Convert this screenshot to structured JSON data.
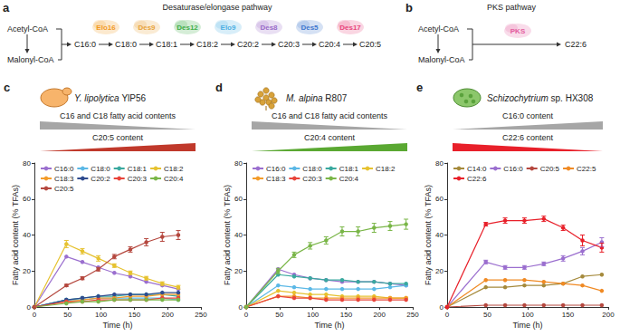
{
  "diagrams": [
    {
      "label": "a",
      "title": "Desaturase/elongase pathway",
      "sources": [
        "Acetyl-CoA",
        "Malonyl-CoA"
      ],
      "chain": [
        "C16:0",
        "C18:0",
        "C18:1",
        "C18:2",
        "C20:2",
        "C20:3",
        "C20:4",
        "C20:5"
      ],
      "enzymes": [
        {
          "name": "Elo16",
          "color": "#f29a1f"
        },
        {
          "name": "Des9",
          "color": "#e8a33a"
        },
        {
          "name": "Des12",
          "color": "#3fae49"
        },
        {
          "name": "Elo9",
          "color": "#4fb0e3"
        },
        {
          "name": "Des8",
          "color": "#9a6cc9"
        },
        {
          "name": "Des5",
          "color": "#3f78cf"
        },
        {
          "name": "Des17",
          "color": "#e8467c"
        }
      ]
    },
    {
      "label": "b",
      "title": "PKS pathway",
      "sources": [
        "Acetyl-CoA",
        "Malonyl-CoA"
      ],
      "enzyme": {
        "name": "PKS",
        "color": "#e45fa0"
      },
      "product": "C22:6"
    }
  ],
  "panels": [
    {
      "label": "c",
      "species": "Y. lipolytica",
      "strain": "YlP56",
      "trends": [
        {
          "text": "C16 and C18 fatty acid contents",
          "color": "#a6a6a6",
          "direction": "decrease"
        },
        {
          "text": "C20:5 content",
          "color": "#c0392b",
          "direction": "increase"
        }
      ]
    },
    {
      "label": "d",
      "species": "M. alpina",
      "strain": "R807",
      "trends": [
        {
          "text": "C16 and C18 fatty acid contents",
          "color": "#a6a6a6",
          "direction": "decrease"
        },
        {
          "text": "C20:4 content",
          "color": "#5aa832",
          "direction": "increase"
        }
      ]
    },
    {
      "label": "e",
      "species": "Schizochytrium",
      "strain": "sp. HX308",
      "trends": [
        {
          "text": "C16:0 content",
          "color": "#a6a6a6",
          "direction": "increase"
        },
        {
          "text": "C22:6 content",
          "color": "#e8202a",
          "direction": "decrease"
        }
      ]
    }
  ],
  "chart_data": [
    {
      "type": "line",
      "x_label": "Time (h)",
      "y_label": "Fatty acid content (% TFAs)",
      "x": [
        0,
        48,
        72,
        96,
        120,
        144,
        168,
        192,
        216
      ],
      "xlim": [
        0,
        250
      ],
      "xticks": [
        0,
        50,
        100,
        150,
        200,
        250
      ],
      "ylim": [
        0,
        80
      ],
      "yticks": [
        0,
        20,
        40,
        60,
        80
      ],
      "grid": false,
      "legend": "top",
      "marker": "circle",
      "series": [
        {
          "name": "C16:0",
          "color": "#9b6fcf",
          "values": [
            0,
            28,
            25,
            22,
            19,
            17,
            14,
            12,
            10
          ]
        },
        {
          "name": "C18:0",
          "color": "#5bb8e6",
          "values": [
            0,
            4,
            4,
            5,
            5,
            5,
            5,
            5,
            4
          ]
        },
        {
          "name": "C18:1",
          "color": "#3aa99f",
          "values": [
            0,
            4,
            5,
            6,
            6,
            7,
            7,
            7,
            6
          ]
        },
        {
          "name": "C18:2",
          "color": "#e6c230",
          "values": [
            0,
            35,
            31,
            27,
            23,
            19,
            16,
            13,
            11
          ],
          "errors": [
            0,
            2,
            1.5,
            1.5,
            1,
            1,
            1,
            1,
            1
          ]
        },
        {
          "name": "C18:3",
          "color": "#f39c2b",
          "values": [
            0,
            3,
            4,
            5,
            5,
            6,
            6,
            7,
            7
          ]
        },
        {
          "name": "C20:2",
          "color": "#2f4b8f",
          "values": [
            0,
            4,
            5,
            6,
            7,
            7,
            7,
            8,
            8
          ]
        },
        {
          "name": "C20:3",
          "color": "#e8443a",
          "values": [
            0,
            3,
            3,
            4,
            4,
            4,
            4,
            5,
            5
          ]
        },
        {
          "name": "C20:4",
          "color": "#7ab648",
          "values": [
            0,
            2,
            3,
            3,
            4,
            4,
            4,
            4,
            4
          ]
        },
        {
          "name": "C20:5",
          "color": "#b5483f",
          "values": [
            0,
            12,
            16,
            21,
            28,
            32,
            36,
            39,
            40
          ],
          "errors": [
            0,
            0.6,
            0.8,
            1,
            1.2,
            1.5,
            2,
            2.5,
            2.5
          ]
        }
      ]
    },
    {
      "type": "line",
      "x_label": "Time (h)",
      "y_label": "Fatty acid content (% TFAs)",
      "x": [
        0,
        48,
        72,
        96,
        120,
        144,
        168,
        192,
        216,
        240
      ],
      "xlim": [
        0,
        250
      ],
      "xticks": [
        0,
        50,
        100,
        150,
        200,
        250
      ],
      "ylim": [
        0,
        80
      ],
      "yticks": [
        0,
        20,
        40,
        60,
        80
      ],
      "grid": false,
      "legend": "top",
      "marker": "circle",
      "series": [
        {
          "name": "C16:0",
          "color": "#9b6fcf",
          "values": [
            0,
            21,
            18,
            16,
            15,
            14,
            14,
            14,
            13,
            12
          ]
        },
        {
          "name": "C18:0",
          "color": "#5bb8e6",
          "values": [
            0,
            12,
            11,
            10,
            10,
            10,
            10,
            10,
            11,
            12
          ]
        },
        {
          "name": "C18:1",
          "color": "#3aa99f",
          "values": [
            0,
            18,
            17,
            16,
            15,
            15,
            14,
            14,
            13,
            13
          ]
        },
        {
          "name": "C18:2",
          "color": "#e6c230",
          "values": [
            0,
            9,
            8,
            7,
            7,
            6,
            6,
            6,
            5,
            5
          ]
        },
        {
          "name": "C18:3",
          "color": "#f39c2b",
          "values": [
            0,
            6,
            6,
            5,
            5,
            5,
            5,
            5,
            5,
            5
          ]
        },
        {
          "name": "C20:3",
          "color": "#e8443a",
          "values": [
            0,
            6,
            5,
            5,
            4,
            4,
            4,
            4,
            4,
            4
          ]
        },
        {
          "name": "C20:4",
          "color": "#7ab648",
          "values": [
            0,
            20,
            29,
            34,
            37,
            42,
            42,
            44,
            45,
            46
          ],
          "errors": [
            0,
            1.5,
            1.5,
            1.8,
            2,
            2.5,
            2.5,
            2.5,
            2.5,
            2.8
          ]
        }
      ]
    },
    {
      "type": "line",
      "x_label": "Time (h)",
      "y_label": "Fatty acid content (% TFAs)",
      "x": [
        0,
        48,
        72,
        96,
        120,
        144,
        168,
        192
      ],
      "xlim": [
        0,
        200
      ],
      "xticks": [
        0,
        50,
        100,
        150,
        200
      ],
      "ylim": [
        0,
        80
      ],
      "yticks": [
        0,
        20,
        40,
        60,
        80
      ],
      "grid": false,
      "legend": "top",
      "marker": "circle",
      "series": [
        {
          "name": "C14:0",
          "color": "#a58a3c",
          "values": [
            0,
            11,
            11,
            12,
            12,
            13,
            17,
            18
          ]
        },
        {
          "name": "C16:0",
          "color": "#9b6fcf",
          "values": [
            0,
            25,
            22,
            22,
            24,
            27,
            31,
            36
          ],
          "errors": [
            0,
            1,
            1,
            1,
            1,
            1.5,
            2,
            2.5
          ]
        },
        {
          "name": "C20:5",
          "color": "#b5483f",
          "values": [
            0,
            1,
            1,
            1,
            1,
            1,
            1,
            1
          ]
        },
        {
          "name": "C22:5",
          "color": "#f08a24",
          "values": [
            0,
            15,
            15,
            15,
            14,
            13,
            12,
            9
          ]
        },
        {
          "name": "C22:6",
          "color": "#e8202a",
          "values": [
            0,
            46,
            48,
            48,
            49,
            44,
            37,
            33
          ],
          "errors": [
            0,
            1,
            1.5,
            1.5,
            1.5,
            1.5,
            3,
            2.5
          ]
        }
      ]
    }
  ]
}
